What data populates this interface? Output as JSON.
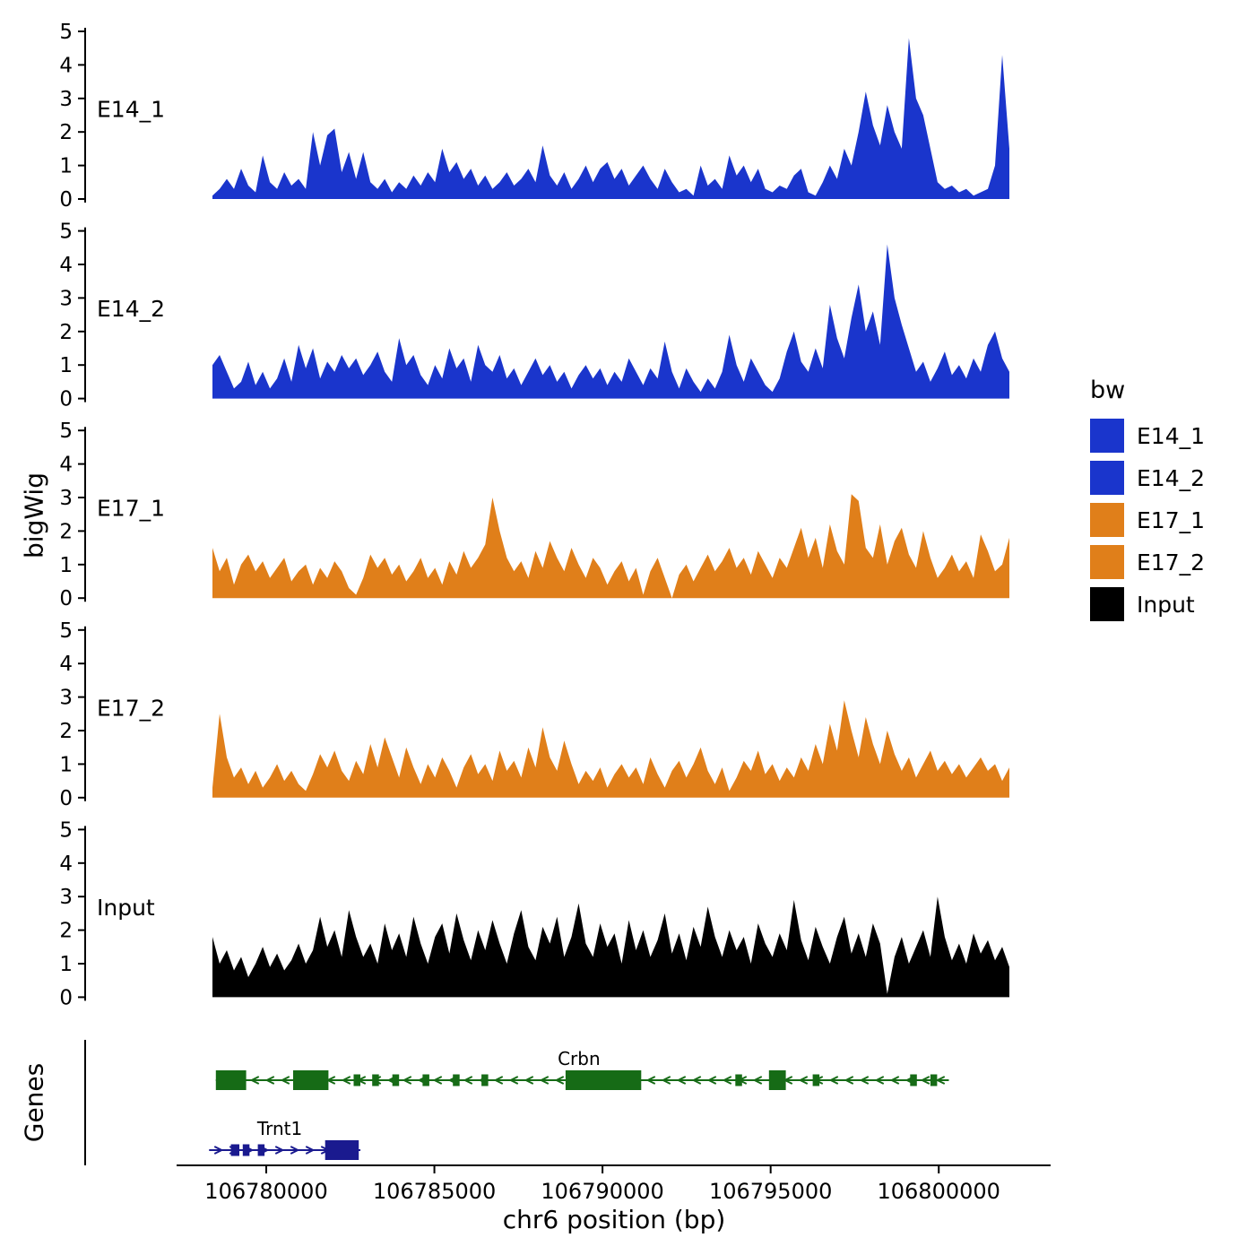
{
  "axes": {
    "x_title": "chr6 position (bp)",
    "y_title": "bigWig",
    "genes_title": "Genes"
  },
  "legend": {
    "title": "bw",
    "items": [
      {
        "label": "E14_1",
        "color": "#1a35cc"
      },
      {
        "label": "E14_2",
        "color": "#1a35cc"
      },
      {
        "label": "E17_1",
        "color": "#e07f1a"
      },
      {
        "label": "E17_2",
        "color": "#e07f1a"
      },
      {
        "label": "Input",
        "color": "#000000"
      }
    ]
  },
  "chart_data": {
    "type": "area",
    "title": "",
    "xlabel": "chr6 position (bp)",
    "ylabel": "bigWig",
    "x_start": 106778400,
    "x_end": 106802100,
    "ylim": [
      0,
      5
    ],
    "yticks": [
      0,
      1,
      2,
      3,
      4,
      5
    ],
    "xticks": [
      {
        "bp": 106780000,
        "label": "106780000"
      },
      {
        "bp": 106785000,
        "label": "106785000"
      },
      {
        "bp": 106790000,
        "label": "106790000"
      },
      {
        "bp": 106795000,
        "label": "106795000"
      },
      {
        "bp": 106800000,
        "label": "106800000"
      }
    ],
    "tracks": [
      {
        "name": "E14_1",
        "color": "#1a35cc",
        "values": [
          0.1,
          0.3,
          0.6,
          0.3,
          0.9,
          0.4,
          0.2,
          1.3,
          0.5,
          0.3,
          0.8,
          0.4,
          0.6,
          0.3,
          2.0,
          1.0,
          1.9,
          2.1,
          0.8,
          1.4,
          0.6,
          1.4,
          0.5,
          0.3,
          0.6,
          0.2,
          0.5,
          0.3,
          0.7,
          0.4,
          0.8,
          0.5,
          1.5,
          0.8,
          1.1,
          0.6,
          0.9,
          0.4,
          0.7,
          0.3,
          0.5,
          0.8,
          0.4,
          0.6,
          0.9,
          0.5,
          1.6,
          0.7,
          0.4,
          0.8,
          0.3,
          0.6,
          1.0,
          0.5,
          0.9,
          1.1,
          0.6,
          0.9,
          0.4,
          0.7,
          1.0,
          0.6,
          0.3,
          0.9,
          0.5,
          0.2,
          0.3,
          0.1,
          1.0,
          0.4,
          0.6,
          0.3,
          1.3,
          0.7,
          1.0,
          0.5,
          0.9,
          0.3,
          0.2,
          0.4,
          0.3,
          0.7,
          0.9,
          0.2,
          0.1,
          0.5,
          1.0,
          0.6,
          1.5,
          1.0,
          2.0,
          3.2,
          2.2,
          1.6,
          2.8,
          2.0,
          1.5,
          4.8,
          3.0,
          2.5,
          1.5,
          0.5,
          0.3,
          0.4,
          0.2,
          0.3,
          0.1,
          0.2,
          0.3,
          1.0,
          4.3,
          1.5
        ]
      },
      {
        "name": "E14_2",
        "color": "#1a35cc",
        "values": [
          1.0,
          1.3,
          0.8,
          0.3,
          0.5,
          1.1,
          0.4,
          0.8,
          0.3,
          0.6,
          1.2,
          0.5,
          1.6,
          0.9,
          1.5,
          0.6,
          1.1,
          0.8,
          1.3,
          0.9,
          1.2,
          0.7,
          1.0,
          1.4,
          0.8,
          0.5,
          1.8,
          1.0,
          1.3,
          0.7,
          0.4,
          1.0,
          0.6,
          1.5,
          0.9,
          1.2,
          0.5,
          1.6,
          1.0,
          0.8,
          1.3,
          0.6,
          0.9,
          0.4,
          0.8,
          1.2,
          0.7,
          1.0,
          0.5,
          0.8,
          0.3,
          0.7,
          1.0,
          0.6,
          0.9,
          0.4,
          0.8,
          0.5,
          1.2,
          0.8,
          0.4,
          0.9,
          0.6,
          1.7,
          0.8,
          0.3,
          0.9,
          0.5,
          0.2,
          0.6,
          0.3,
          0.8,
          1.9,
          1.0,
          0.5,
          1.2,
          0.8,
          0.4,
          0.2,
          0.6,
          1.4,
          2.0,
          1.1,
          0.8,
          1.5,
          0.9,
          2.8,
          1.8,
          1.2,
          2.4,
          3.4,
          2.0,
          2.6,
          1.6,
          4.6,
          3.0,
          2.2,
          1.5,
          0.8,
          1.1,
          0.5,
          0.9,
          1.4,
          0.7,
          1.0,
          0.6,
          1.2,
          0.8,
          1.6,
          2.0,
          1.2,
          0.8
        ]
      },
      {
        "name": "E17_1",
        "color": "#e07f1a",
        "values": [
          1.5,
          0.8,
          1.2,
          0.4,
          1.0,
          1.3,
          0.8,
          1.1,
          0.6,
          0.9,
          1.2,
          0.5,
          0.8,
          1.0,
          0.4,
          0.9,
          0.6,
          1.1,
          0.8,
          0.3,
          0.1,
          0.6,
          1.3,
          0.9,
          1.2,
          0.7,
          1.0,
          0.5,
          0.8,
          1.2,
          0.6,
          0.9,
          0.4,
          1.1,
          0.7,
          1.4,
          0.9,
          1.2,
          1.6,
          3.0,
          2.0,
          1.2,
          0.8,
          1.1,
          0.6,
          1.4,
          0.9,
          1.7,
          1.2,
          0.8,
          1.5,
          1.0,
          0.6,
          1.2,
          0.9,
          0.4,
          0.8,
          1.1,
          0.5,
          0.9,
          0.1,
          0.8,
          1.2,
          0.6,
          0.0,
          0.7,
          1.0,
          0.5,
          0.9,
          1.3,
          0.8,
          1.1,
          1.5,
          0.9,
          1.2,
          0.7,
          1.4,
          1.0,
          0.6,
          1.2,
          0.9,
          1.5,
          2.1,
          1.2,
          1.8,
          0.9,
          2.2,
          1.4,
          1.0,
          3.1,
          2.9,
          1.5,
          1.2,
          2.2,
          1.0,
          1.7,
          2.1,
          1.3,
          0.9,
          2.0,
          1.2,
          0.6,
          0.9,
          1.3,
          0.8,
          1.1,
          0.6,
          1.9,
          1.4,
          0.8,
          1.0,
          1.8
        ]
      },
      {
        "name": "E17_2",
        "color": "#e07f1a",
        "values": [
          0.3,
          2.5,
          1.2,
          0.6,
          0.9,
          0.4,
          0.8,
          0.3,
          0.6,
          1.0,
          0.5,
          0.8,
          0.4,
          0.2,
          0.7,
          1.3,
          0.9,
          1.4,
          0.8,
          0.5,
          1.1,
          0.7,
          1.6,
          0.9,
          1.8,
          1.2,
          0.6,
          1.5,
          0.9,
          0.4,
          1.0,
          0.6,
          1.2,
          0.8,
          0.3,
          0.9,
          1.3,
          0.7,
          1.0,
          0.5,
          1.4,
          0.8,
          1.1,
          0.6,
          1.5,
          0.9,
          2.1,
          1.2,
          0.8,
          1.7,
          1.0,
          0.4,
          0.8,
          0.5,
          0.9,
          0.3,
          0.7,
          1.0,
          0.6,
          0.9,
          0.4,
          1.2,
          0.7,
          0.3,
          0.8,
          1.1,
          0.6,
          1.0,
          1.5,
          0.8,
          0.4,
          0.9,
          0.2,
          0.6,
          1.1,
          0.8,
          1.4,
          0.7,
          1.0,
          0.5,
          0.9,
          0.6,
          1.2,
          0.8,
          1.6,
          1.0,
          2.2,
          1.4,
          2.9,
          2.0,
          1.2,
          2.4,
          1.6,
          1.0,
          2.0,
          1.3,
          0.8,
          1.2,
          0.6,
          1.0,
          1.4,
          0.8,
          1.1,
          0.7,
          1.0,
          0.6,
          0.9,
          1.2,
          0.8,
          1.0,
          0.5,
          0.9
        ]
      },
      {
        "name": "Input",
        "color": "#000000",
        "values": [
          1.8,
          1.0,
          1.4,
          0.8,
          1.2,
          0.6,
          1.0,
          1.5,
          0.9,
          1.3,
          0.8,
          1.1,
          1.6,
          1.0,
          1.4,
          2.4,
          1.5,
          2.0,
          1.2,
          2.6,
          1.8,
          1.2,
          1.6,
          1.0,
          2.2,
          1.4,
          1.9,
          1.2,
          2.4,
          1.6,
          1.0,
          1.8,
          2.2,
          1.3,
          2.5,
          1.7,
          1.1,
          2.0,
          1.4,
          2.3,
          1.6,
          1.0,
          1.9,
          2.6,
          1.5,
          1.1,
          2.1,
          1.6,
          2.4,
          1.2,
          1.8,
          2.8,
          1.6,
          1.2,
          2.2,
          1.5,
          1.9,
          1.0,
          2.3,
          1.4,
          2.0,
          1.2,
          1.7,
          2.5,
          1.3,
          1.9,
          1.1,
          2.1,
          1.5,
          2.7,
          1.8,
          1.2,
          2.0,
          1.4,
          1.8,
          1.0,
          2.2,
          1.6,
          1.2,
          1.9,
          1.4,
          2.9,
          1.7,
          1.1,
          2.1,
          1.5,
          1.0,
          1.8,
          2.4,
          1.3,
          1.9,
          1.2,
          2.2,
          1.6,
          0.1,
          1.2,
          1.8,
          1.0,
          1.5,
          2.0,
          1.2,
          3.0,
          1.8,
          1.1,
          1.6,
          1.0,
          1.9,
          1.3,
          1.7,
          1.1,
          1.5,
          0.9
        ]
      }
    ],
    "genes": [
      {
        "name": "Crbn",
        "color": "#166b16",
        "strand": "-",
        "start": 106778500,
        "end": 106800300,
        "label_bp": 106789300,
        "exons": [
          [
            106778500,
            106779400,
            1
          ],
          [
            106780800,
            106781850,
            1
          ],
          [
            106782600,
            106782800,
            0
          ],
          [
            106783150,
            106783350,
            0
          ],
          [
            106783750,
            106783950,
            0
          ],
          [
            106784650,
            106784850,
            0
          ],
          [
            106785550,
            106785750,
            0
          ],
          [
            106786400,
            106786600,
            0
          ],
          [
            106788900,
            106791150,
            1
          ],
          [
            106793950,
            106794150,
            0
          ],
          [
            106794950,
            106795450,
            1
          ],
          [
            106796250,
            106796450,
            0
          ],
          [
            106799150,
            106799350,
            0
          ],
          [
            106799750,
            106799950,
            0
          ]
        ]
      },
      {
        "name": "Trnt1",
        "color": "#1a1a8f",
        "strand": "+",
        "start": 106778300,
        "end": 106782800,
        "label_bp": 106780400,
        "exons": [
          [
            106778950,
            106779200,
            0
          ],
          [
            106779300,
            106779500,
            0
          ],
          [
            106779750,
            106779950,
            0
          ],
          [
            106781750,
            106782750,
            1
          ]
        ]
      }
    ]
  }
}
